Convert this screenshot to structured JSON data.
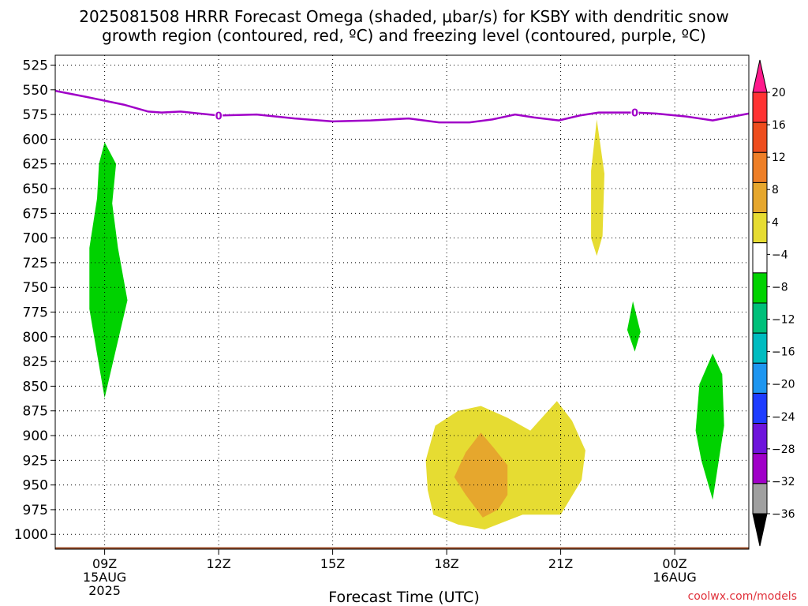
{
  "chart_data": {
    "type": "heatmap",
    "title_line1": "2025081508 HRRR Forecast Omega (shaded, μbar/s) for KSBY with dendritic snow",
    "title_line2": "growth region (contoured, red, ºC) and freezing level (contoured, purple, ºC)",
    "xlabel": "Forecast Time (UTC)",
    "y_axis": {
      "ticks": [
        525,
        550,
        575,
        600,
        625,
        650,
        675,
        700,
        725,
        750,
        775,
        800,
        825,
        850,
        875,
        900,
        925,
        950,
        975,
        1000
      ],
      "range": [
        515,
        1015
      ],
      "unit": "hPa",
      "inverted": true
    },
    "x_axis": {
      "range_hours": [
        7.7,
        25.95
      ],
      "ticks": [
        {
          "hour": 9,
          "lines": [
            "09Z",
            "15AUG",
            "2025"
          ]
        },
        {
          "hour": 12,
          "lines": [
            "12Z"
          ]
        },
        {
          "hour": 15,
          "lines": [
            "15Z"
          ]
        },
        {
          "hour": 18,
          "lines": [
            "18Z"
          ]
        },
        {
          "hour": 21,
          "lines": [
            "21Z"
          ]
        },
        {
          "hour": 24,
          "lines": [
            "00Z",
            "16AUG"
          ]
        }
      ]
    },
    "grid": true,
    "colorbar": {
      "placement": "right",
      "labels": [
        "20",
        "16",
        "12",
        "8",
        "4",
        "−4",
        "−8",
        "−12",
        "−16",
        "−20",
        "−24",
        "−28",
        "−32",
        "−36"
      ],
      "colors": [
        "#ff1a8c",
        "#ff3333",
        "#ee4d1e",
        "#ee7f27",
        "#e6a72d",
        "#e6dc32",
        "#ffffff",
        "#00d200",
        "#00c07a",
        "#00bcc0",
        "#1e96f0",
        "#1e3cff",
        "#6e14dc",
        "#a000c8",
        "#a0a0a0",
        "#000000"
      ]
    },
    "freezing_level": {
      "color": "#a000c8",
      "label": "0",
      "label_hours": [
        12,
        22.95
      ],
      "points": [
        [
          7.7,
          551
        ],
        [
          8.5,
          557
        ],
        [
          9.5,
          565
        ],
        [
          10.15,
          572
        ],
        [
          10.5,
          573
        ],
        [
          11.0,
          572
        ],
        [
          12.0,
          576
        ],
        [
          13.0,
          575
        ],
        [
          14.0,
          579
        ],
        [
          15.0,
          582
        ],
        [
          16.0,
          581
        ],
        [
          17.0,
          579
        ],
        [
          17.8,
          583
        ],
        [
          18.6,
          583
        ],
        [
          19.2,
          580
        ],
        [
          19.8,
          575
        ],
        [
          20.3,
          578
        ],
        [
          20.95,
          581
        ],
        [
          21.5,
          576
        ],
        [
          22.0,
          573
        ],
        [
          22.95,
          573
        ],
        [
          23.5,
          574
        ],
        [
          24.3,
          577
        ],
        [
          25.0,
          581
        ],
        [
          25.95,
          574
        ]
      ]
    },
    "omega_regions": [
      {
        "level": "-8 to -4",
        "color": "#00d200",
        "points": [
          [
            9.0,
            603
          ],
          [
            9.3,
            625
          ],
          [
            9.2,
            665
          ],
          [
            9.35,
            710
          ],
          [
            9.6,
            763
          ],
          [
            9.0,
            862
          ],
          [
            8.6,
            772
          ],
          [
            8.6,
            710
          ],
          [
            8.8,
            660
          ],
          [
            8.85,
            625
          ]
        ]
      },
      {
        "level": "-8 to -4",
        "color": "#00d200",
        "points": [
          [
            22.9,
            764
          ],
          [
            23.1,
            795
          ],
          [
            22.95,
            815
          ],
          [
            22.75,
            793
          ]
        ]
      },
      {
        "level": "-8 to -4",
        "color": "#00d200",
        "points": [
          [
            25.0,
            817
          ],
          [
            25.25,
            838
          ],
          [
            25.3,
            890
          ],
          [
            25.1,
            940
          ],
          [
            25.0,
            965
          ],
          [
            24.7,
            925
          ],
          [
            24.55,
            895
          ],
          [
            24.65,
            848
          ]
        ]
      },
      {
        "level": "4 to 8",
        "color": "#e6dc32",
        "points": [
          [
            21.95,
            580
          ],
          [
            22.15,
            635
          ],
          [
            22.1,
            698
          ],
          [
            21.95,
            718
          ],
          [
            21.8,
            700
          ],
          [
            21.8,
            632
          ]
        ]
      },
      {
        "level": "4 to 8",
        "color": "#e6dc32",
        "points": [
          [
            17.7,
            890
          ],
          [
            18.3,
            875
          ],
          [
            18.9,
            870
          ],
          [
            19.6,
            882
          ],
          [
            20.2,
            895
          ],
          [
            20.9,
            865
          ],
          [
            21.3,
            885
          ],
          [
            21.65,
            915
          ],
          [
            21.55,
            945
          ],
          [
            21.0,
            980
          ],
          [
            20.0,
            980
          ],
          [
            19.0,
            995
          ],
          [
            18.3,
            990
          ],
          [
            17.65,
            980
          ],
          [
            17.5,
            955
          ],
          [
            17.45,
            925
          ]
        ]
      },
      {
        "level": "8 to 12",
        "color": "#e6a72d",
        "points": [
          [
            18.9,
            897
          ],
          [
            19.25,
            913
          ],
          [
            19.6,
            930
          ],
          [
            19.6,
            960
          ],
          [
            19.35,
            975
          ],
          [
            18.95,
            983
          ],
          [
            18.5,
            960
          ],
          [
            18.2,
            942
          ],
          [
            18.5,
            917
          ]
        ]
      }
    ],
    "surface": {
      "color": "#a0522d",
      "pressure": 1013
    }
  },
  "footer": {
    "credit": "coolwx.com/models"
  }
}
